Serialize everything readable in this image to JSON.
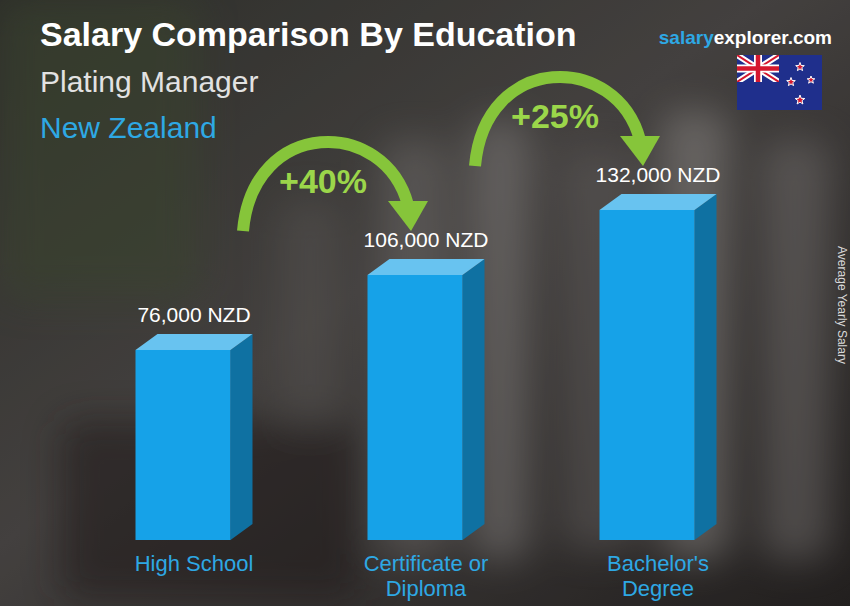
{
  "chart_data": {
    "type": "bar",
    "title": "Salary Comparison By Education",
    "subtitle": "Plating Manager",
    "region": "New Zealand",
    "source": [
      "salary",
      "explorer.com"
    ],
    "ylabel": "Average Yearly Salary",
    "categories": [
      "High School",
      "Certificate or Diploma",
      "Bachelor's Degree"
    ],
    "values": [
      76000,
      106000,
      132000
    ],
    "value_labels": [
      "76,000 NZD",
      "106,000 NZD",
      "132,000 NZD"
    ],
    "data_labels": true,
    "color": "#16a2e8",
    "ylim": [
      0,
      150000
    ],
    "tick_labels": false,
    "grid": false,
    "annotations": [
      "+40%",
      "+25%"
    ]
  }
}
